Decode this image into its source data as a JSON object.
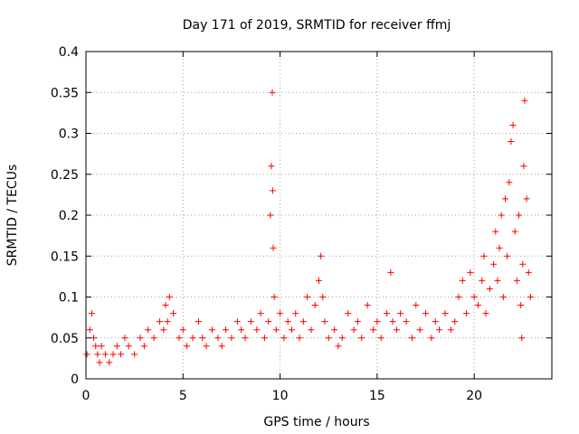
{
  "chart_data": {
    "type": "scatter",
    "title": "Day 171 of 2019, SRMTID for receiver ffmj",
    "xlabel": "GPS time / hours",
    "ylabel": "SRMTID / TECUs",
    "xlim": [
      0,
      24
    ],
    "ylim": [
      0,
      0.4
    ],
    "xticks": [
      0,
      5,
      10,
      15,
      20
    ],
    "xtick_labels": [
      "0",
      "5",
      "10",
      "15",
      "20"
    ],
    "yticks": [
      0,
      0.05,
      0.1,
      0.15,
      0.2,
      0.25,
      0.3,
      0.35,
      0.4
    ],
    "ytick_labels": [
      "0",
      "0.05",
      "0.1",
      "0.15",
      "0.2",
      "0.25",
      "0.3",
      "0.35",
      "0.4"
    ],
    "grid": true,
    "marker": "plus",
    "color": "#ff0000",
    "series": [
      {
        "name": "ffmj",
        "x": [
          0.05,
          0.2,
          0.3,
          0.4,
          0.5,
          0.6,
          0.7,
          0.8,
          1.0,
          1.2,
          1.4,
          1.6,
          1.8,
          2.0,
          2.2,
          2.5,
          2.8,
          3.0,
          3.2,
          3.5,
          3.8,
          4.0,
          4.1,
          4.2,
          4.3,
          4.5,
          4.8,
          5.0,
          5.2,
          5.5,
          5.8,
          6.0,
          6.2,
          6.5,
          6.8,
          7.0,
          7.2,
          7.5,
          7.8,
          8.0,
          8.2,
          8.5,
          8.8,
          9.0,
          9.2,
          9.4,
          9.5,
          9.55,
          9.6,
          9.62,
          9.65,
          9.7,
          9.8,
          10.0,
          10.2,
          10.4,
          10.6,
          10.8,
          11.0,
          11.2,
          11.4,
          11.6,
          11.8,
          12.0,
          12.1,
          12.2,
          12.3,
          12.5,
          12.8,
          13.0,
          13.2,
          13.5,
          13.8,
          14.0,
          14.2,
          14.5,
          14.8,
          15.0,
          15.2,
          15.5,
          15.7,
          15.8,
          16.0,
          16.2,
          16.5,
          16.8,
          17.0,
          17.2,
          17.5,
          17.8,
          18.0,
          18.2,
          18.5,
          18.8,
          19.0,
          19.2,
          19.4,
          19.6,
          19.8,
          20.0,
          20.2,
          20.4,
          20.5,
          20.6,
          20.8,
          21.0,
          21.1,
          21.2,
          21.3,
          21.4,
          21.5,
          21.6,
          21.7,
          21.8,
          21.9,
          22.0,
          22.1,
          22.2,
          22.3,
          22.4,
          22.45,
          22.5,
          22.55,
          22.6,
          22.7,
          22.8,
          22.9
        ],
        "y": [
          0.03,
          0.06,
          0.08,
          0.05,
          0.04,
          0.03,
          0.02,
          0.04,
          0.03,
          0.02,
          0.03,
          0.04,
          0.03,
          0.05,
          0.04,
          0.03,
          0.05,
          0.04,
          0.06,
          0.05,
          0.07,
          0.06,
          0.09,
          0.07,
          0.1,
          0.08,
          0.05,
          0.06,
          0.04,
          0.05,
          0.07,
          0.05,
          0.04,
          0.06,
          0.05,
          0.04,
          0.06,
          0.05,
          0.07,
          0.06,
          0.05,
          0.07,
          0.06,
          0.08,
          0.05,
          0.07,
          0.2,
          0.26,
          0.35,
          0.23,
          0.16,
          0.1,
          0.06,
          0.08,
          0.05,
          0.07,
          0.06,
          0.08,
          0.05,
          0.07,
          0.1,
          0.06,
          0.09,
          0.12,
          0.15,
          0.1,
          0.07,
          0.05,
          0.06,
          0.04,
          0.05,
          0.08,
          0.06,
          0.07,
          0.05,
          0.09,
          0.06,
          0.07,
          0.05,
          0.08,
          0.13,
          0.07,
          0.06,
          0.08,
          0.07,
          0.05,
          0.09,
          0.06,
          0.08,
          0.05,
          0.07,
          0.06,
          0.08,
          0.06,
          0.07,
          0.1,
          0.12,
          0.08,
          0.13,
          0.1,
          0.09,
          0.12,
          0.15,
          0.08,
          0.11,
          0.14,
          0.18,
          0.12,
          0.16,
          0.2,
          0.1,
          0.22,
          0.15,
          0.24,
          0.29,
          0.31,
          0.18,
          0.12,
          0.2,
          0.09,
          0.05,
          0.14,
          0.26,
          0.34,
          0.22,
          0.13,
          0.1
        ]
      }
    ]
  }
}
